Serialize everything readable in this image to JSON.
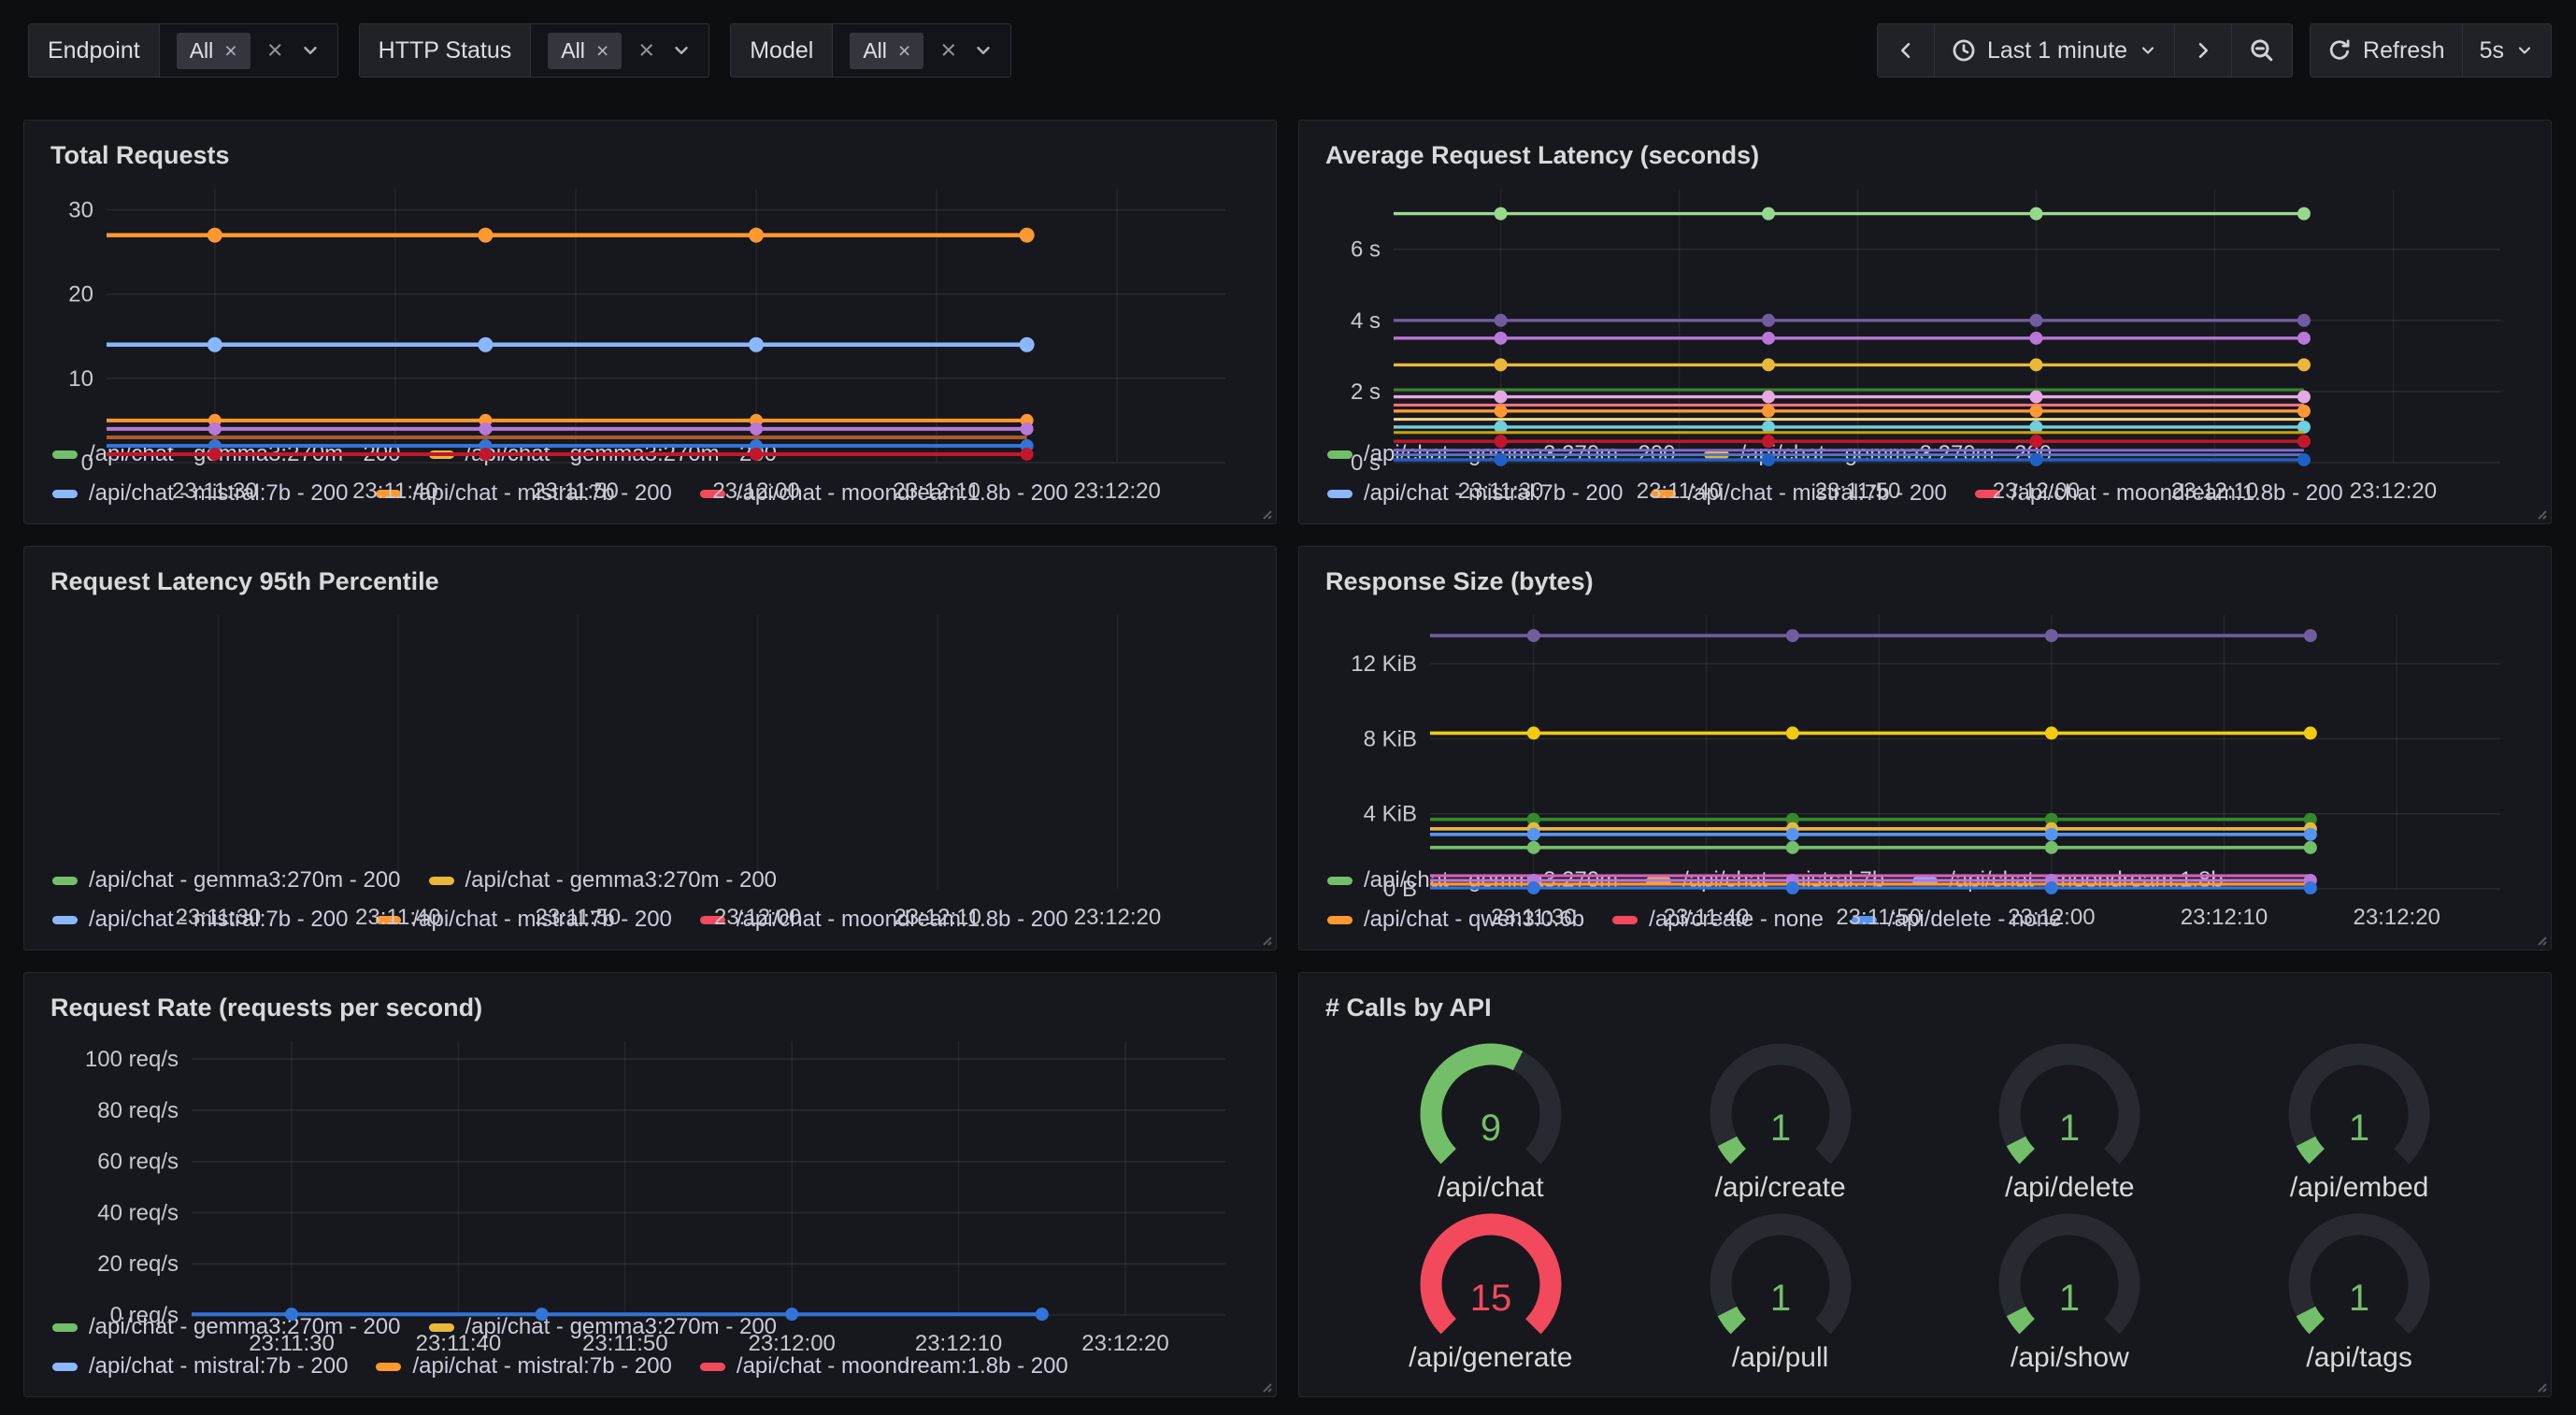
{
  "filters": [
    {
      "label": "Endpoint",
      "value_chip": "All"
    },
    {
      "label": "HTTP Status",
      "value_chip": "All"
    },
    {
      "label": "Model",
      "value_chip": "All"
    }
  ],
  "timepicker": {
    "range_label": "Last 1 minute",
    "refresh_label": "Refresh",
    "interval": "5s"
  },
  "chart_data": [
    {
      "title": "Total Requests",
      "type": "line",
      "x_domain": [
        24,
        86
      ],
      "x_ticks": [
        {
          "t": 30,
          "label": "23:11:30"
        },
        {
          "t": 40,
          "label": "23:11:40"
        },
        {
          "t": 50,
          "label": "23:11:50"
        },
        {
          "t": 60,
          "label": "23:12:00"
        },
        {
          "t": 70,
          "label": "23:12:10"
        },
        {
          "t": 80,
          "label": "23:12:20"
        }
      ],
      "x_points": [
        30,
        45,
        60,
        75
      ],
      "y_unit": "",
      "y_ticks": [
        {
          "v": 0,
          "label": "0"
        },
        {
          "v": 10,
          "label": "10"
        },
        {
          "v": 20,
          "label": "20"
        },
        {
          "v": 30,
          "label": "30"
        }
      ],
      "ylim": [
        0,
        32.5
      ],
      "series": [
        {
          "color": "#FF9830",
          "values": [
            27,
            27,
            27,
            27
          ],
          "points": true,
          "width": 4.5
        },
        {
          "color": "#8AB8FF",
          "values": [
            14,
            14,
            14,
            14
          ],
          "points": true,
          "width": 4.5
        },
        {
          "color": "#FF9830",
          "values": [
            5,
            5,
            5,
            5
          ],
          "points": true,
          "width": 4
        },
        {
          "color": "#B877D9",
          "values": [
            4,
            4,
            4,
            4
          ],
          "points": true,
          "width": 4
        },
        {
          "color": "#AD5A28",
          "values": [
            3,
            3,
            3,
            3
          ],
          "points": false,
          "width": 4
        },
        {
          "color": "#3274D9",
          "values": [
            2,
            2,
            2,
            2
          ],
          "points": true,
          "width": 4
        },
        {
          "color": "#C4162A",
          "values": [
            1,
            1,
            1,
            1
          ],
          "points": true,
          "width": 4
        }
      ],
      "legend_rows": [
        [
          {
            "color": "#73BF69",
            "label": "/api/chat - gemma3:270m - 200"
          },
          {
            "color": "#EAB839",
            "label": "/api/chat - gemma3:270m - 200"
          }
        ],
        [
          {
            "color": "#8AB8FF",
            "label": "/api/chat - mistral:7b - 200"
          },
          {
            "color": "#FF9830",
            "label": "/api/chat - mistral:7b - 200"
          },
          {
            "color": "#F2495C",
            "label": "/api/chat - moondream:1.8b - 200"
          }
        ]
      ]
    },
    {
      "title": "Average Request Latency (seconds)",
      "type": "line",
      "x_domain": [
        24,
        86
      ],
      "x_ticks": [
        {
          "t": 30,
          "label": "23:11:30"
        },
        {
          "t": 40,
          "label": "23:11:40"
        },
        {
          "t": 50,
          "label": "23:11:50"
        },
        {
          "t": 60,
          "label": "23:12:00"
        },
        {
          "t": 70,
          "label": "23:12:10"
        },
        {
          "t": 80,
          "label": "23:12:20"
        }
      ],
      "x_points": [
        30,
        45,
        60,
        75
      ],
      "y_unit": "s",
      "y_ticks": [
        {
          "v": 0,
          "label": "0 s"
        },
        {
          "v": 2,
          "label": "2 s"
        },
        {
          "v": 4,
          "label": "4 s"
        },
        {
          "v": 6,
          "label": "6 s"
        }
      ],
      "ylim": [
        0,
        7.7
      ],
      "series": [
        {
          "color": "#96D98D",
          "values": [
            7.0,
            7.0,
            7.0,
            7.0
          ],
          "points": true,
          "width": 3.4
        },
        {
          "color": "#705DA0",
          "values": [
            4.0,
            4.0,
            4.0,
            4.0
          ],
          "points": true,
          "width": 3.4
        },
        {
          "color": "#B877D9",
          "values": [
            3.5,
            3.5,
            3.5,
            3.5
          ],
          "points": true,
          "width": 3.4
        },
        {
          "color": "#EAB839",
          "values": [
            2.75,
            2.75,
            2.75,
            2.75
          ],
          "points": true,
          "width": 3.4
        },
        {
          "color": "#37872D",
          "values": [
            2.05,
            2.05,
            2.05,
            2.05
          ],
          "points": false,
          "width": 3
        },
        {
          "color": "#E5A8E2",
          "values": [
            1.85,
            1.85,
            1.85,
            1.85
          ],
          "points": true,
          "width": 3.4
        },
        {
          "color": "#FF7383",
          "values": [
            1.62,
            1.62,
            1.62,
            1.62
          ],
          "points": false,
          "width": 3
        },
        {
          "color": "#FF9830",
          "values": [
            1.45,
            1.45,
            1.45,
            1.45
          ],
          "points": true,
          "width": 3.4
        },
        {
          "color": "#EFD98A",
          "values": [
            1.22,
            1.22,
            1.22,
            1.22
          ],
          "points": false,
          "width": 3
        },
        {
          "color": "#6ED0E0",
          "values": [
            1.0,
            1.0,
            1.0,
            1.0
          ],
          "points": true,
          "width": 3.4
        },
        {
          "color": "#CCA300",
          "values": [
            0.85,
            0.85,
            0.85,
            0.85
          ],
          "points": false,
          "width": 3
        },
        {
          "color": "#C4162A",
          "values": [
            0.6,
            0.6,
            0.6,
            0.6
          ],
          "points": true,
          "width": 3.4
        },
        {
          "color": "#7D6BD0",
          "values": [
            0.35,
            0.35,
            0.35,
            0.35
          ],
          "points": false,
          "width": 3
        },
        {
          "color": "#5B70C2",
          "values": [
            0.22,
            0.22,
            0.22,
            0.22
          ],
          "points": false,
          "width": 3
        },
        {
          "color": "#1F60C4",
          "values": [
            0.08,
            0.08,
            0.08,
            0.08
          ],
          "points": true,
          "width": 3.4
        }
      ],
      "legend_rows": [
        [
          {
            "color": "#73BF69",
            "label": "/api/chat - gemma3:270m - 200"
          },
          {
            "color": "#EAB839",
            "label": "/api/chat - gemma3:270m - 200"
          }
        ],
        [
          {
            "color": "#8AB8FF",
            "label": "/api/chat - mistral:7b - 200"
          },
          {
            "color": "#FF9830",
            "label": "/api/chat - mistral:7b - 200"
          },
          {
            "color": "#F2495C",
            "label": "/api/chat - moondream:1.8b - 200"
          }
        ]
      ]
    },
    {
      "title": "Request Latency 95th Percentile",
      "type": "line",
      "x_domain": [
        24,
        86
      ],
      "x_ticks": [
        {
          "t": 30,
          "label": "23:11:30"
        },
        {
          "t": 40,
          "label": "23:11:40"
        },
        {
          "t": 50,
          "label": "23:11:50"
        },
        {
          "t": 60,
          "label": "23:12:00"
        },
        {
          "t": 70,
          "label": "23:12:10"
        },
        {
          "t": 80,
          "label": "23:12:20"
        }
      ],
      "x_points": [
        30,
        45,
        60,
        75
      ],
      "y_unit": "",
      "y_ticks": [],
      "ylim": [
        0,
        1
      ],
      "series": [],
      "legend_rows": [
        [
          {
            "color": "#73BF69",
            "label": "/api/chat - gemma3:270m - 200"
          },
          {
            "color": "#EAB839",
            "label": "/api/chat - gemma3:270m - 200"
          }
        ],
        [
          {
            "color": "#8AB8FF",
            "label": "/api/chat - mistral:7b - 200"
          },
          {
            "color": "#FF9830",
            "label": "/api/chat - mistral:7b - 200"
          },
          {
            "color": "#F2495C",
            "label": "/api/chat - moondream:1.8b - 200"
          }
        ]
      ]
    },
    {
      "title": "Response Size (bytes)",
      "type": "line",
      "x_domain": [
        24,
        86
      ],
      "x_ticks": [
        {
          "t": 30,
          "label": "23:11:30"
        },
        {
          "t": 40,
          "label": "23:11:40"
        },
        {
          "t": 50,
          "label": "23:11:50"
        },
        {
          "t": 60,
          "label": "23:12:00"
        },
        {
          "t": 70,
          "label": "23:12:10"
        },
        {
          "t": 80,
          "label": "23:12:20"
        }
      ],
      "x_points": [
        30,
        45,
        60,
        75
      ],
      "y_unit": "KiB",
      "y_ticks": [
        {
          "v": 0,
          "label": "0 B"
        },
        {
          "v": 4,
          "label": "4 KiB"
        },
        {
          "v": 8,
          "label": "8 KiB"
        },
        {
          "v": 12,
          "label": "12 KiB"
        }
      ],
      "ylim": [
        0,
        14.6
      ],
      "series": [
        {
          "color": "#705DA0",
          "values": [
            13.5,
            13.5,
            13.5,
            13.5
          ],
          "points": true,
          "width": 3.6
        },
        {
          "color": "#F2CC0C",
          "values": [
            8.3,
            8.3,
            8.3,
            8.3
          ],
          "points": true,
          "width": 3.6
        },
        {
          "color": "#37872D",
          "values": [
            3.7,
            3.7,
            3.7,
            3.7
          ],
          "points": true,
          "width": 3.6
        },
        {
          "color": "#EAB839",
          "values": [
            3.2,
            3.2,
            3.2,
            3.2
          ],
          "points": true,
          "width": 3.6
        },
        {
          "color": "#5794F2",
          "values": [
            2.9,
            2.9,
            2.9,
            2.9
          ],
          "points": true,
          "width": 3.6
        },
        {
          "color": "#73BF69",
          "values": [
            2.2,
            2.2,
            2.2,
            2.2
          ],
          "points": true,
          "width": 3.6
        },
        {
          "color": "#D45FB8",
          "values": [
            0.7,
            0.7,
            0.7,
            0.7
          ],
          "points": false,
          "width": 3.2
        },
        {
          "color": "#B877D9",
          "values": [
            0.45,
            0.45,
            0.45,
            0.45
          ],
          "points": true,
          "width": 3.2
        },
        {
          "color": "#FF9830",
          "values": [
            0.25,
            0.25,
            0.25,
            0.25
          ],
          "points": false,
          "width": 3.2
        },
        {
          "color": "#3274D9",
          "values": [
            0.05,
            0.05,
            0.05,
            0.05
          ],
          "points": true,
          "width": 3.2
        }
      ],
      "legend_rows": [
        [
          {
            "color": "#73BF69",
            "label": "/api/chat - gemma3:270m"
          },
          {
            "color": "#EAB839",
            "label": "/api/chat - mistral:7b"
          },
          {
            "color": "#8AB8FF",
            "label": "/api/chat - moondream:1.8b"
          }
        ],
        [
          {
            "color": "#FF9830",
            "label": "/api/chat - qwen3:0.6b"
          },
          {
            "color": "#F2495C",
            "label": "/api/create - none"
          },
          {
            "color": "#5794F2",
            "label": "/api/delete - none"
          }
        ]
      ]
    },
    {
      "title": "Request Rate (requests per second)",
      "type": "line",
      "x_domain": [
        24,
        86
      ],
      "x_ticks": [
        {
          "t": 30,
          "label": "23:11:30"
        },
        {
          "t": 40,
          "label": "23:11:40"
        },
        {
          "t": 50,
          "label": "23:11:50"
        },
        {
          "t": 60,
          "label": "23:12:00"
        },
        {
          "t": 70,
          "label": "23:12:10"
        },
        {
          "t": 80,
          "label": "23:12:20"
        }
      ],
      "x_points": [
        30,
        45,
        60,
        75
      ],
      "y_unit": "req/s",
      "y_ticks": [
        {
          "v": 0,
          "label": "0 req/s"
        },
        {
          "v": 20,
          "label": "20 req/s"
        },
        {
          "v": 40,
          "label": "40 req/s"
        },
        {
          "v": 60,
          "label": "60 req/s"
        },
        {
          "v": 80,
          "label": "80 req/s"
        },
        {
          "v": 100,
          "label": "100 req/s"
        }
      ],
      "ylim": [
        0,
        107
      ],
      "series": [
        {
          "color": "#3274D9",
          "values": [
            0.3,
            0.3,
            0.3,
            0.3
          ],
          "points": true,
          "width": 4
        }
      ],
      "legend_rows": [
        [
          {
            "color": "#73BF69",
            "label": "/api/chat - gemma3:270m - 200"
          },
          {
            "color": "#EAB839",
            "label": "/api/chat - gemma3:270m - 200"
          }
        ],
        [
          {
            "color": "#8AB8FF",
            "label": "/api/chat - mistral:7b - 200"
          },
          {
            "color": "#FF9830",
            "label": "/api/chat - mistral:7b - 200"
          },
          {
            "color": "#F2495C",
            "label": "/api/chat - moondream:1.8b - 200"
          }
        ]
      ]
    },
    {
      "title": "# Calls by API",
      "type": "gauge",
      "gauges": [
        {
          "label": "/api/chat",
          "value": 9,
          "color": "#73BF69"
        },
        {
          "label": "/api/create",
          "value": 1,
          "color": "#73BF69"
        },
        {
          "label": "/api/delete",
          "value": 1,
          "color": "#73BF69"
        },
        {
          "label": "/api/embed",
          "value": 1,
          "color": "#73BF69"
        },
        {
          "label": "/api/generate",
          "value": 15,
          "color": "#F2495C"
        },
        {
          "label": "/api/pull",
          "value": 1,
          "color": "#73BF69"
        },
        {
          "label": "/api/show",
          "value": 1,
          "color": "#73BF69"
        },
        {
          "label": "/api/tags",
          "value": 1,
          "color": "#73BF69"
        }
      ]
    }
  ]
}
